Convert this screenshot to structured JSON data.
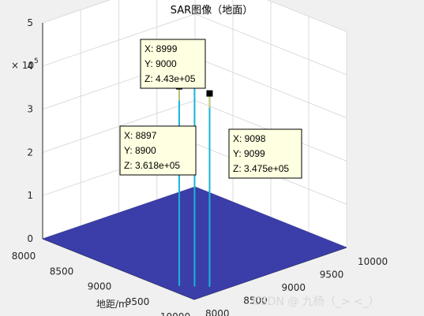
{
  "chart_data": {
    "type": "surface",
    "title": "SAR图像（地面）",
    "xlabel": "地距/m",
    "ylabel": "",
    "zlabel": "",
    "xlim": [
      8000,
      10000
    ],
    "ylim": [
      8000,
      10000
    ],
    "zlim": [
      0,
      500000
    ],
    "x_ticks": [
      "8000",
      "8500",
      "9000",
      "9500",
      "10000"
    ],
    "y_ticks": [
      "8000",
      "8500",
      "9000",
      "9500",
      "10000"
    ],
    "z_ticks": [
      "0",
      "1",
      "2",
      "3",
      "4",
      "5"
    ],
    "z_exponent_label": "× 10",
    "z_exponent_power": "5",
    "grid": true,
    "surface_color": "#3b3ea8",
    "peak_color": "#18b5d8",
    "peaks": [
      {
        "x": 8897,
        "y": 8900,
        "z": 361800
      },
      {
        "x": 8999,
        "y": 9000,
        "z": 443000
      },
      {
        "x": 9098,
        "y": 9099,
        "z": 347500
      }
    ],
    "datatips": [
      {
        "x_text": "X: 8897",
        "y_text": "Y: 8900",
        "z_text": "Z: 3.618e+05"
      },
      {
        "x_text": "X: 8999",
        "y_text": "Y: 9000",
        "z_text": "Z: 4.43e+05"
      },
      {
        "x_text": "X: 9098",
        "y_text": "Y: 9099",
        "z_text": "Z: 3.475e+05"
      }
    ]
  },
  "watermark": "CSDN @ 九杨（_>  <_）"
}
